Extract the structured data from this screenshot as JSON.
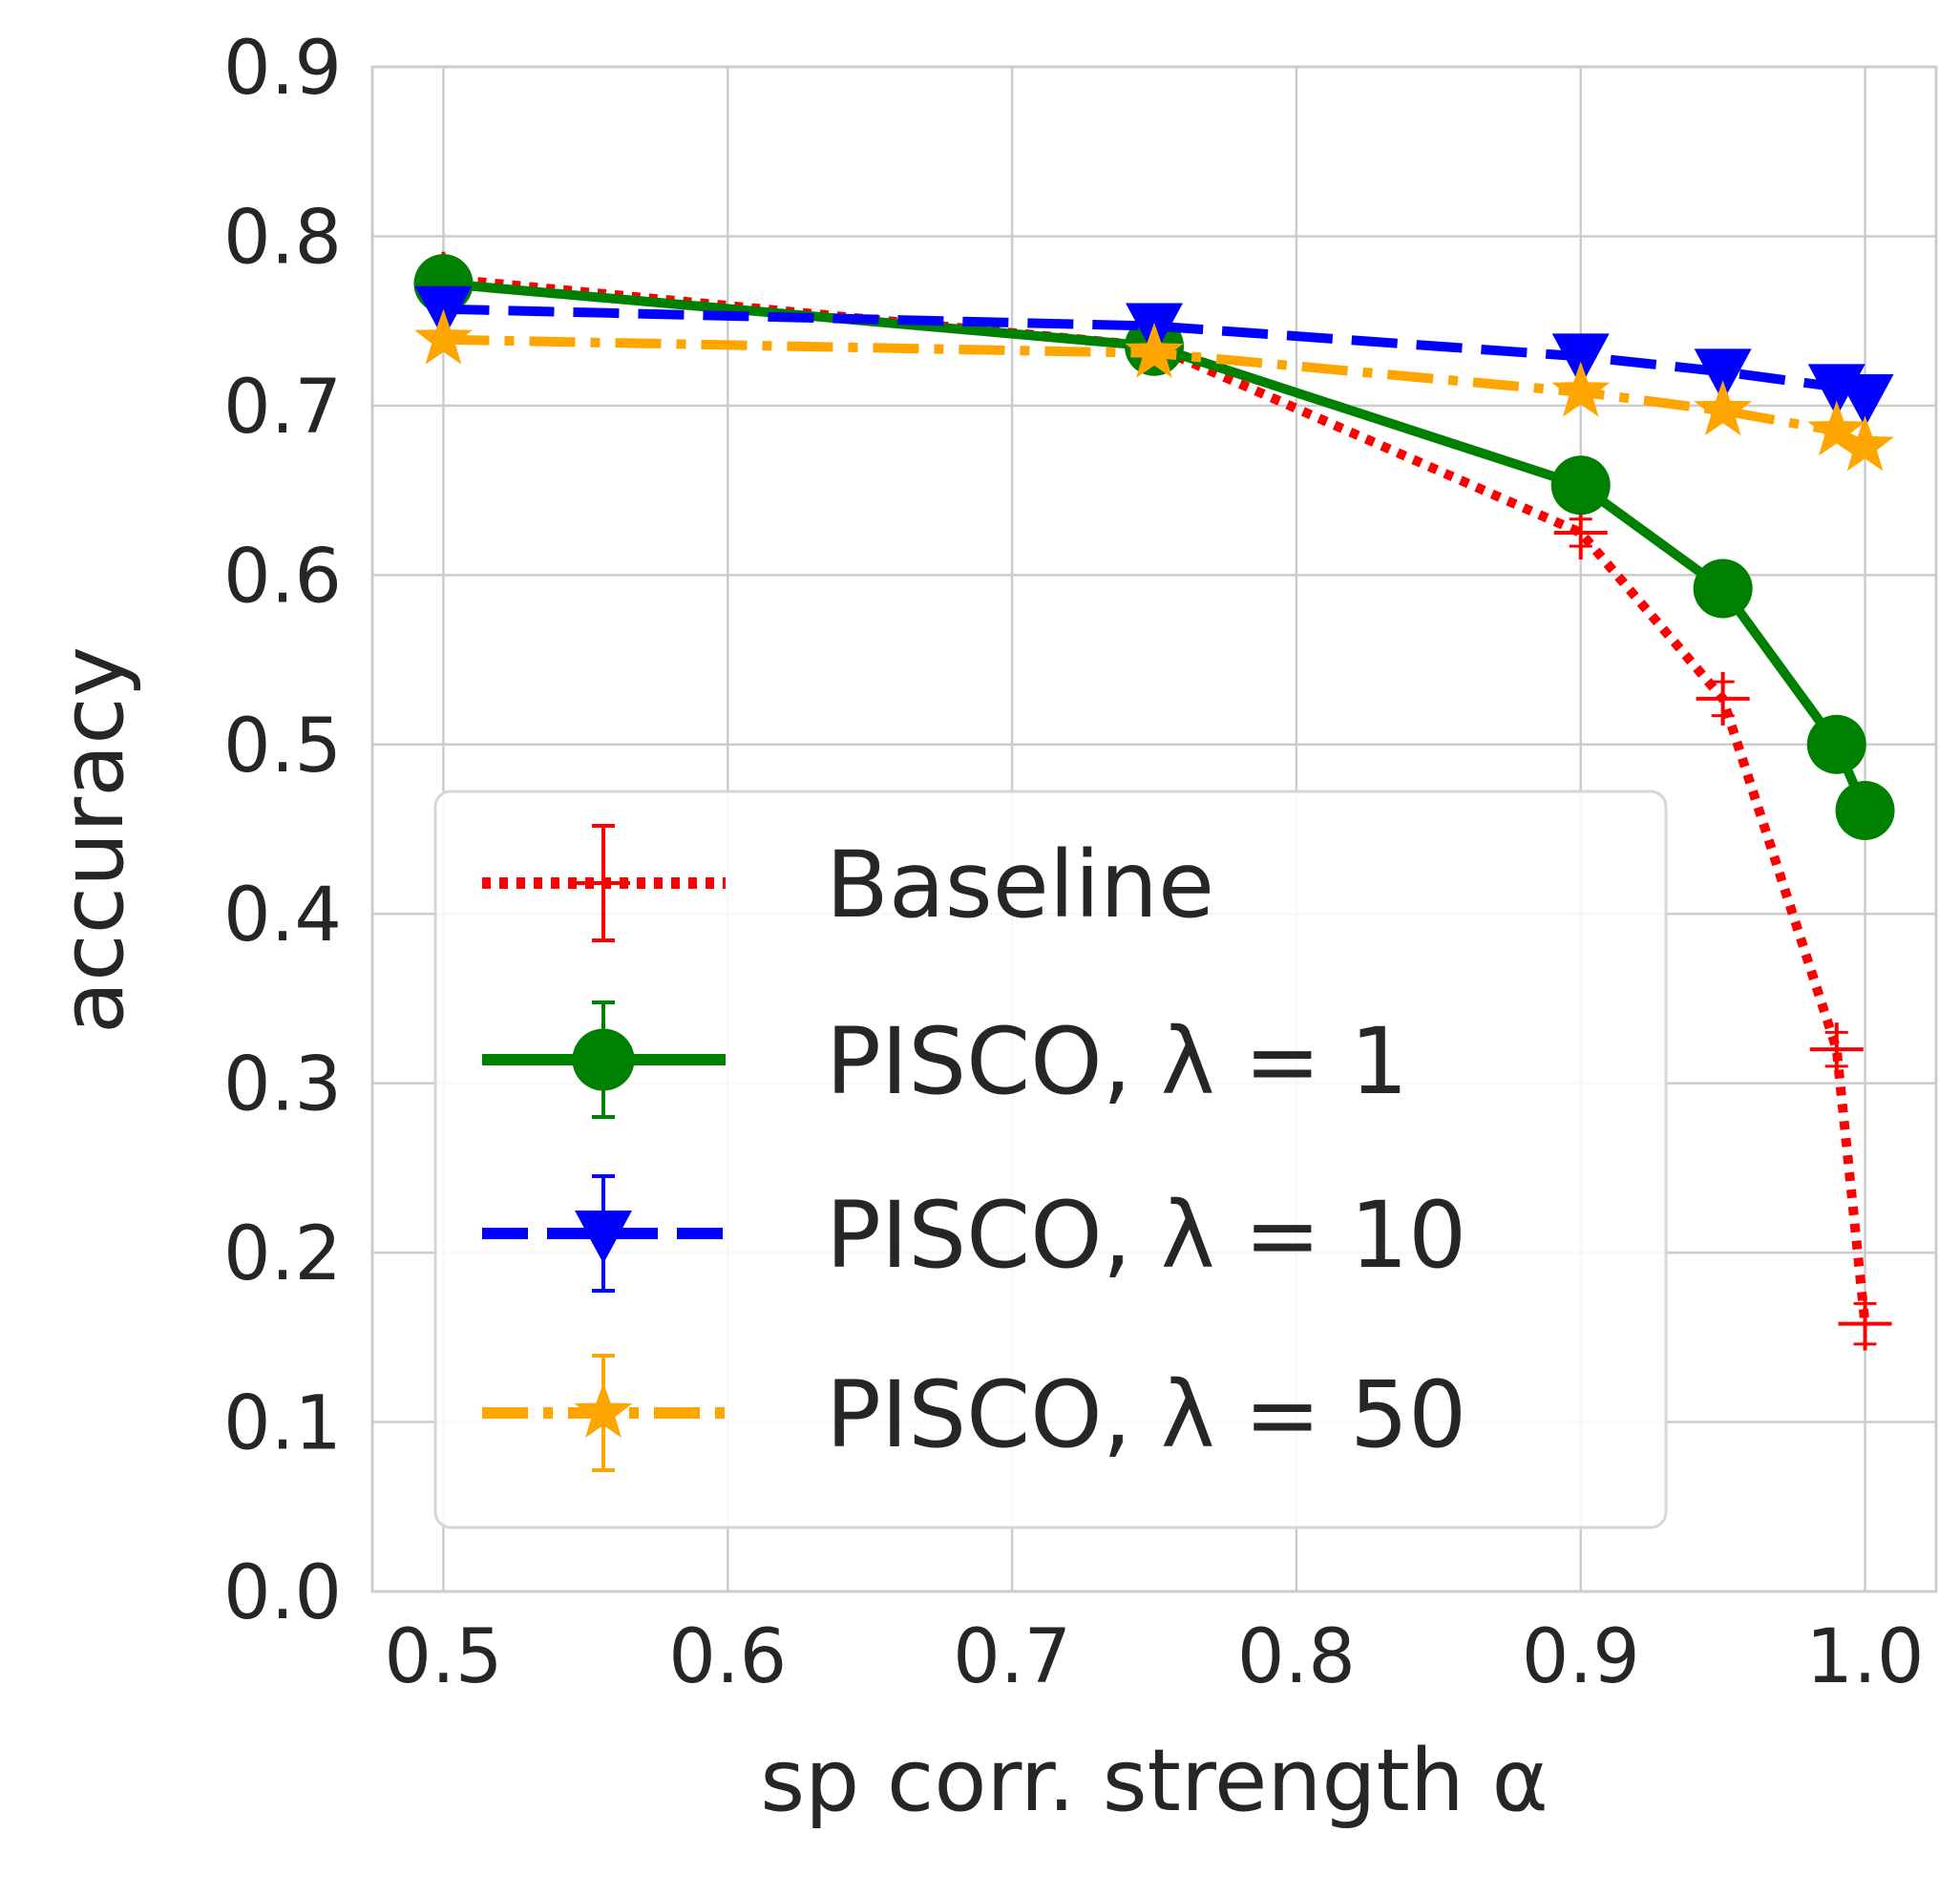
{
  "chart_data": {
    "type": "line",
    "title": "",
    "xlabel": "sp corr. strength α",
    "ylabel": "accuracy",
    "xlim": [
      0.475,
      1.025
    ],
    "ylim": [
      0.0,
      0.9
    ],
    "xticks": [
      0.5,
      0.6,
      0.7,
      0.8,
      0.9,
      1.0
    ],
    "xtick_labels": [
      "0.5",
      "0.6",
      "0.7",
      "0.8",
      "0.9",
      "1.0"
    ],
    "yticks": [
      0.0,
      0.1,
      0.2,
      0.3,
      0.4,
      0.5,
      0.6,
      0.7,
      0.8,
      0.9
    ],
    "ytick_labels": [
      "0.0",
      "0.1",
      "0.2",
      "0.3",
      "0.4",
      "0.5",
      "0.6",
      "0.7",
      "0.8",
      "0.9"
    ],
    "grid": true,
    "legend_position": "lower-left",
    "series": [
      {
        "name": "Baseline",
        "color": "#ff0000",
        "linestyle": "dotted",
        "marker": "plus",
        "x": [
          0.5,
          0.75,
          0.9,
          0.95,
          0.99,
          1.0
        ],
        "y": [
          0.775,
          0.735,
          0.625,
          0.527,
          0.32,
          0.158
        ],
        "err": [
          0.005,
          0.005,
          0.008,
          0.01,
          0.01,
          0.012
        ]
      },
      {
        "name": "PISCO, λ = 1",
        "color": "#008000",
        "linestyle": "solid",
        "marker": "circle",
        "x": [
          0.5,
          0.75,
          0.9,
          0.95,
          0.99,
          1.0
        ],
        "y": [
          0.772,
          0.735,
          0.653,
          0.592,
          0.5,
          0.461
        ],
        "err": [
          0.005,
          0.005,
          0.006,
          0.006,
          0.006,
          0.006
        ]
      },
      {
        "name": "PISCO, λ = 10",
        "color": "#0000ff",
        "linestyle": "dashed",
        "marker": "triangle-down",
        "x": [
          0.5,
          0.75,
          0.9,
          0.95,
          0.99,
          1.0
        ],
        "y": [
          0.757,
          0.747,
          0.729,
          0.72,
          0.711,
          0.705
        ],
        "err": [
          0.004,
          0.004,
          0.004,
          0.004,
          0.004,
          0.004
        ]
      },
      {
        "name": "PISCO, λ = 50",
        "color": "#ffa500",
        "linestyle": "dashdot",
        "marker": "star",
        "x": [
          0.5,
          0.75,
          0.9,
          0.95,
          0.99,
          1.0
        ],
        "y": [
          0.739,
          0.731,
          0.708,
          0.697,
          0.685,
          0.676
        ],
        "err": [
          0.004,
          0.004,
          0.004,
          0.004,
          0.004,
          0.004
        ]
      }
    ]
  }
}
